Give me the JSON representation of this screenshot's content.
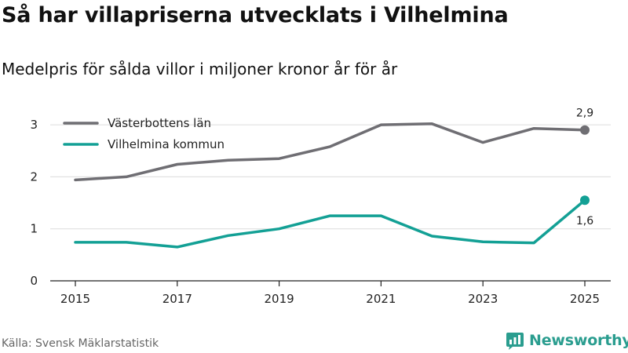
{
  "title": "Så har villapriserna utvecklats i Vilhelmina",
  "subtitle": "Medelpris för sålda villor i miljoner kronor år för år",
  "source": "Källa: Svensk Mäklarstatistik",
  "brand": {
    "name": "Newsworthy",
    "icon": "newsworthy-logo-icon",
    "color": "#2a9d8f"
  },
  "chart_data": {
    "type": "line",
    "title": "Så har villapriserna utvecklats i Vilhelmina",
    "subtitle": "Medelpris för sålda villor i miljoner kronor år för år",
    "xlabel": "",
    "ylabel": "",
    "x": [
      2015,
      2016,
      2017,
      2018,
      2019,
      2020,
      2021,
      2022,
      2023,
      2024,
      2025
    ],
    "xticks": [
      "2015",
      "2017",
      "2019",
      "2021",
      "2023",
      "2025"
    ],
    "yticks": [
      "0",
      "1",
      "2",
      "3"
    ],
    "ylim": [
      0,
      3.3
    ],
    "grid": true,
    "legend_position": "top-left",
    "series": [
      {
        "name": "Västerbottens län",
        "color": "#6f6e73",
        "values": [
          1.94,
          2.0,
          2.24,
          2.32,
          2.35,
          2.58,
          3.0,
          3.02,
          2.66,
          2.93,
          2.9
        ],
        "end_label": "2,9"
      },
      {
        "name": "Vilhelmina kommun",
        "color": "#13a095",
        "values": [
          0.74,
          0.74,
          0.65,
          0.87,
          1.0,
          1.25,
          1.25,
          0.86,
          0.75,
          0.73,
          1.55
        ],
        "end_label": "1,6"
      }
    ]
  }
}
